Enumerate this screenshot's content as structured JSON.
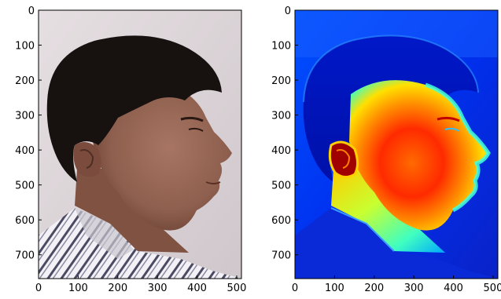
{
  "panels": [
    {
      "name": "photo-panel",
      "content": "profile photograph",
      "x_ticks": [
        "0",
        "100",
        "200",
        "300",
        "400",
        "500"
      ],
      "y_ticks": [
        "0",
        "100",
        "200",
        "300",
        "400",
        "500",
        "600",
        "700"
      ],
      "xlim": [
        0,
        512
      ],
      "ylim": [
        768,
        0
      ]
    },
    {
      "name": "heatmap-panel",
      "content": "jet colormap rendering of the same profile",
      "x_ticks": [
        "0",
        "100",
        "200",
        "300",
        "400",
        "500"
      ],
      "y_ticks": [
        "0",
        "100",
        "200",
        "300",
        "400",
        "500",
        "600",
        "700"
      ],
      "xlim": [
        0,
        512
      ],
      "ylim": [
        768,
        0
      ]
    }
  ],
  "colors": {
    "jet_blue": "#0000ff",
    "jet_cyan": "#00ffff",
    "jet_yellow": "#ffff00",
    "jet_red": "#ff0000",
    "jet_dark_red": "#800000",
    "hair": "#1a1410",
    "skin": "#9a6a58",
    "background_photo": "#ddd6d8",
    "shirt": "#f0eef2"
  }
}
